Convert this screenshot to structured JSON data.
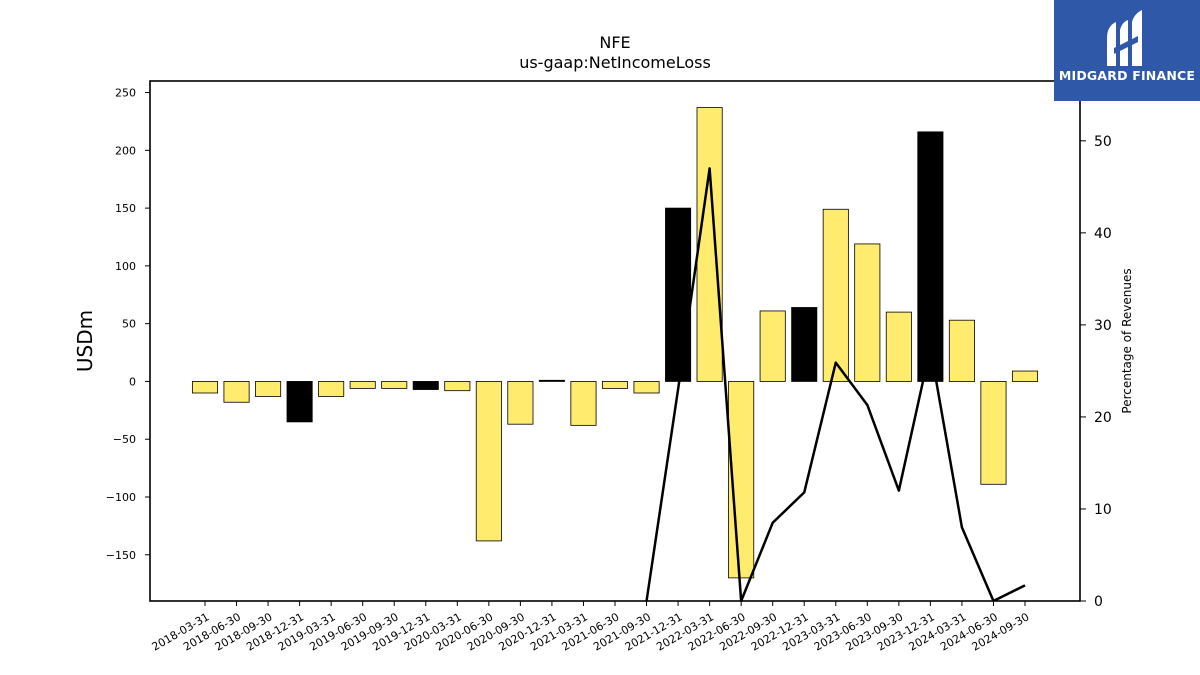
{
  "chart_data": {
    "type": "bar",
    "title": "NFE",
    "subtitle": "us-gaap:NetIncomeLoss",
    "ylabel": "USDm",
    "y2label": "Percentage of Revenues",
    "ylim": [
      -190,
      260
    ],
    "y2lim": [
      0,
      56.5
    ],
    "yticks": [
      -150,
      -100,
      -50,
      0,
      50,
      100,
      150,
      200,
      250
    ],
    "y2ticks": [
      0,
      10,
      20,
      30,
      40,
      50
    ],
    "categories": [
      "2018-03-31",
      "2018-06-30",
      "2018-09-30",
      "2018-12-31",
      "2019-03-31",
      "2019-06-30",
      "2019-09-30",
      "2019-12-31",
      "2020-03-31",
      "2020-06-30",
      "2020-09-30",
      "2020-12-31",
      "2021-03-31",
      "2021-06-30",
      "2021-09-30",
      "2021-12-31",
      "2022-03-31",
      "2022-06-30",
      "2022-09-30",
      "2022-12-31",
      "2023-03-31",
      "2023-06-30",
      "2023-09-30",
      "2023-12-31",
      "2024-03-31",
      "2024-06-30",
      "2024-09-30"
    ],
    "series": [
      {
        "kind": "bar",
        "values": [
          -10,
          -18,
          -13,
          -35,
          -13,
          -6,
          -6,
          -7,
          -8,
          -138,
          -37,
          1,
          -38,
          -6,
          -10,
          150,
          237,
          -170,
          61,
          64,
          149,
          119,
          60,
          216,
          53,
          -89,
          9
        ],
        "bar_types": [
          "quarter",
          "quarter",
          "quarter",
          "annual",
          "quarter",
          "quarter",
          "quarter",
          "annual",
          "quarter",
          "quarter",
          "quarter",
          "annual",
          "quarter",
          "quarter",
          "quarter",
          "annual",
          "quarter",
          "quarter",
          "quarter",
          "annual",
          "quarter",
          "quarter",
          "quarter",
          "annual",
          "quarter",
          "quarter",
          "quarter"
        ]
      },
      {
        "kind": "line",
        "axis": "right",
        "values": [
          null,
          null,
          null,
          null,
          null,
          null,
          null,
          null,
          null,
          null,
          null,
          0.1,
          null,
          null,
          0,
          23,
          47,
          0,
          8.5,
          11.8,
          25.9,
          21.3,
          12,
          27.5,
          8,
          0,
          1.7
        ]
      }
    ],
    "colors": {
      "quarter": "#ffec6e",
      "annual": "#000000",
      "line": "#000000"
    },
    "grid": false
  },
  "logo": {
    "text": "MIDGARD FINANCE",
    "background": "#2f59a8"
  }
}
